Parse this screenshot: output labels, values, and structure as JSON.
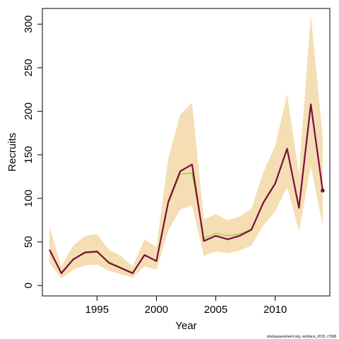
{
  "chart_data": {
    "type": "line",
    "title": "",
    "xlabel": "Year",
    "ylabel": "Recruits",
    "xlim": [
      1990.4,
      2014.6
    ],
    "ylim": [
      -12,
      318
    ],
    "x_ticks": [
      1995,
      2000,
      2005,
      2010
    ],
    "y_ticks": [
      0,
      50,
      100,
      150,
      200,
      250,
      300
    ],
    "grid": false,
    "legend": "none",
    "colors": {
      "band": "#f5deb3",
      "main": "#7a0f3e",
      "alt": "#9acd32"
    },
    "x": [
      1991,
      1992,
      1993,
      1994,
      1995,
      1996,
      1997,
      1998,
      1999,
      2000,
      2001,
      2002,
      2003,
      2004,
      2005,
      2006,
      2007,
      2008,
      2009,
      2010,
      2011,
      2012,
      2013,
      2014
    ],
    "series": [
      {
        "values": [
          41,
          14,
          30,
          38,
          39,
          26,
          20,
          14,
          35,
          28,
          96,
          131,
          139,
          51,
          57,
          53,
          57,
          64,
          95,
          117,
          157,
          89,
          208,
          109
        ]
      },
      {
        "values": [
          40,
          15,
          29,
          37,
          38,
          27,
          21,
          15,
          34,
          29,
          94,
          128,
          129,
          54,
          60,
          57,
          59,
          65,
          94,
          116,
          156,
          90,
          207,
          109
        ]
      }
    ],
    "band": {
      "upper": [
        67,
        22,
        46,
        57,
        59,
        41,
        34,
        22,
        53,
        44,
        146,
        196,
        210,
        76,
        82,
        75,
        79,
        88,
        130,
        160,
        220,
        128,
        310,
        172
      ],
      "lower": [
        26,
        8,
        18,
        23,
        24,
        17,
        13,
        9,
        22,
        18,
        63,
        87,
        92,
        34,
        39,
        37,
        40,
        46,
        69,
        85,
        113,
        62,
        137,
        69
      ]
    },
    "credit": "stockassessment.org, vendace_2015, r7098"
  }
}
